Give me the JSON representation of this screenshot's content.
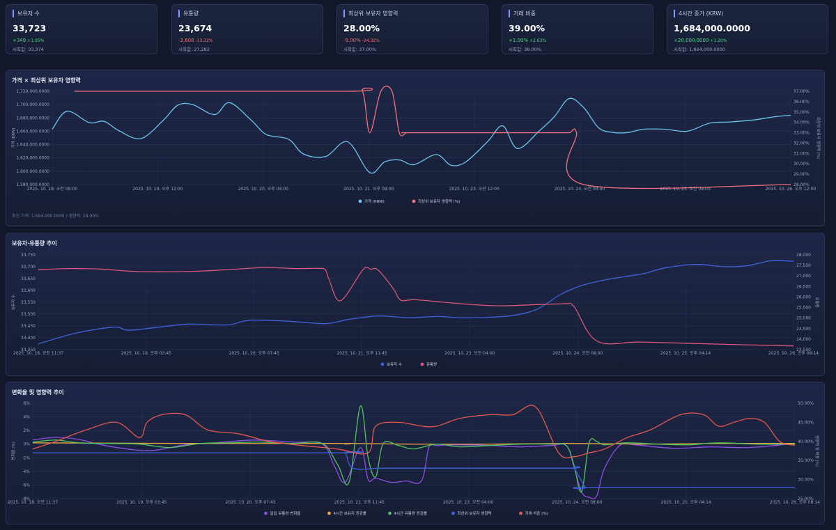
{
  "cards": [
    {
      "title": "보유자 수",
      "value": "33,723",
      "change": "+349",
      "pct": "+1.05%",
      "dir": "pos",
      "prev": "시작값: 33,374"
    },
    {
      "title": "유통량",
      "value": "23,674",
      "change": "-3,608",
      "pct": "-13.22%",
      "dir": "neg",
      "prev": "시작값: 27,282"
    },
    {
      "title": "최상위 보유자 영향력",
      "value": "28.00%",
      "change": "-9.00%",
      "pct": "-24.32%",
      "dir": "neg",
      "prev": "시작값: 37.00%"
    },
    {
      "title": "거래 비중",
      "value": "39.00%",
      "change": "+1.00%",
      "pct": "+2.63%",
      "dir": "pos",
      "prev": "시작값: 38.00%"
    },
    {
      "title": "4시간 종가 (KRW)",
      "value": "1,684,000.0000",
      "change": "+20,000.0000",
      "pct": "+1.20%",
      "dir": "pos",
      "prev": "시작값: 1,664,000.0000"
    }
  ],
  "panels": {
    "p1_title": "가격 × 최상위 보유자 영향력",
    "p1_note": "최신 가격: 1,684,000.0000 / 영향력: 28.00%",
    "p2_title": "보유자·유통량 추이",
    "p3_title": "변화율 및 영향력 추이"
  },
  "chart_data": [
    {
      "type": "line",
      "title": "가격 × 최상위 보유자 영향력",
      "xlabel": "",
      "ylabel": "가격 (KRW)",
      "y2label": "최상위 보유자 영향력 (%)",
      "ylim": [
        1580000,
        1720000
      ],
      "y2lim": [
        28,
        37
      ],
      "yticks": [
        "1,580,000.0000",
        "1,600,000.0000",
        "1,620,000.0000",
        "1,640,000.0000",
        "1,660,000.0000",
        "1,680,000.0000",
        "1,700,000.0000",
        "1,720,000.0000"
      ],
      "y2ticks": [
        "28.00%",
        "29.00%",
        "30.00%",
        "31.00%",
        "32.00%",
        "33.00%",
        "34.00%",
        "35.00%",
        "36.00%",
        "37.00%"
      ],
      "xticks": [
        "2025. 10. 18. 오전 08:00",
        "2025. 10. 19. 오후 12:00",
        "2025. 10. 20. 오후 04:00",
        "2025. 10. 21. 오후 08:00",
        "2025. 10. 23. 오전 12:00",
        "2025. 10. 24. 오전 04:00",
        "2025. 10. 25. 오전 08:00",
        "2025. 10. 26. 오후 12:00"
      ],
      "series": [
        {
          "name": "가격 (KRW)",
          "axis": "left",
          "color": "#6cc7ee",
          "x": [
            0,
            2,
            5,
            7,
            9,
            12,
            15,
            17,
            19,
            22,
            24,
            27,
            29,
            32,
            34,
            37,
            40,
            43,
            45,
            47,
            49,
            52,
            54,
            56,
            59,
            61,
            63,
            66,
            68,
            70,
            72,
            74,
            76,
            78,
            80,
            83,
            86,
            89,
            92,
            95,
            98,
            100
          ],
          "values": [
            1663000,
            1690000,
            1673000,
            1675000,
            1661000,
            1649000,
            1676000,
            1699000,
            1700000,
            1685000,
            1703000,
            1676000,
            1655000,
            1648000,
            1626000,
            1622000,
            1644000,
            1598000,
            1614000,
            1617000,
            1610000,
            1625000,
            1609000,
            1614000,
            1645000,
            1668000,
            1634000,
            1661000,
            1682000,
            1709000,
            1695000,
            1665000,
            1658000,
            1658000,
            1663000,
            1663000,
            1660000,
            1672000,
            1674000,
            1677000,
            1682000,
            1684000
          ]
        },
        {
          "name": "최상위 보유자 영향력 (%)",
          "axis": "right",
          "color": "#f0737d",
          "x": [
            3,
            40,
            42,
            43,
            44.5,
            46,
            47,
            48,
            49,
            68,
            70,
            71,
            72,
            100
          ],
          "values": [
            37,
            37,
            37,
            33,
            37,
            37,
            33,
            33,
            33,
            33,
            33,
            33,
            28,
            28
          ]
        }
      ],
      "legend": [
        "가격 (KRW)",
        "최상위 보유자 영향력 (%)"
      ]
    },
    {
      "type": "line",
      "title": "보유자·유통량 추이",
      "ylabel": "보유자 수",
      "y2label": "유통량",
      "ylim": [
        33350,
        33750
      ],
      "y2lim": [
        23500,
        28000
      ],
      "yticks": [
        "33,350",
        "33,400",
        "33,450",
        "33,500",
        "33,550",
        "33,600",
        "33,650",
        "33,700",
        "33,750"
      ],
      "y2ticks": [
        "23,500",
        "24,000",
        "24,500",
        "25,000",
        "25,500",
        "26,000",
        "26,500",
        "27,000",
        "27,500",
        "28,000"
      ],
      "xticks": [
        "2025. 10. 18. 오전 11:37",
        "2025. 10. 19. 오후 03:45",
        "2025. 10. 20. 오후 07:45",
        "2025. 10. 21. 오후 11:45",
        "2025. 10. 23. 오전 04:00",
        "2025. 10. 24. 오전 08:00",
        "2025. 10. 25. 오후 04:14",
        "2025. 10. 26. 오후 08:14"
      ],
      "series": [
        {
          "name": "보유자 수",
          "axis": "left",
          "color": "#3f63dd",
          "x": [
            0,
            5,
            10,
            12,
            16,
            20,
            25,
            28,
            33,
            38,
            41,
            45,
            49,
            53,
            56,
            60,
            63,
            66,
            69,
            71,
            73,
            76,
            80,
            83,
            87,
            91,
            94,
            97,
            100
          ],
          "values": [
            33374,
            33420,
            33445,
            33432,
            33445,
            33458,
            33454,
            33474,
            33470,
            33460,
            33477,
            33492,
            33485,
            33490,
            33484,
            33487,
            33495,
            33520,
            33580,
            33610,
            33630,
            33650,
            33670,
            33695,
            33710,
            33700,
            33705,
            33725,
            33723
          ]
        },
        {
          "name": "유통량",
          "axis": "right",
          "color": "#d9577a",
          "x": [
            0,
            4,
            8,
            13,
            18,
            22,
            26,
            30,
            34,
            37,
            38,
            38.5,
            40,
            43,
            44,
            45,
            47,
            48,
            50,
            56,
            61,
            66,
            69,
            70,
            71,
            74,
            80,
            90,
            100
          ],
          "values": [
            27300,
            27350,
            27330,
            27210,
            27200,
            27240,
            27320,
            27400,
            27350,
            27360,
            27300,
            26840,
            25820,
            27300,
            27320,
            27280,
            26400,
            25850,
            25870,
            25680,
            25580,
            25640,
            25670,
            25680,
            25520,
            23900,
            23860,
            23760,
            23674
          ]
        }
      ],
      "legend": [
        "보유자 수",
        "유통량"
      ]
    },
    {
      "type": "line",
      "title": "변화율 및 영향력 추이",
      "ylabel": "변화율 (%)",
      "y2label": "영향력 및 비중 (%)",
      "ylim": [
        -8,
        6
      ],
      "y2lim": [
        25,
        50
      ],
      "yticks": [
        "-8%",
        "-6%",
        "-4%",
        "-2%",
        "0%",
        "2%",
        "4%",
        "6%"
      ],
      "y2ticks": [
        "25.00%",
        "30.00%",
        "35.00%",
        "40.00%",
        "45.00%",
        "50.00%"
      ],
      "xticks": [
        "2025. 10. 18. 오전 11:37",
        "2025. 10. 19. 오후 03:45",
        "2025. 10. 20. 오후 07:45",
        "2025. 10. 21. 오후 11:45",
        "2025. 10. 23. 오전 04:00",
        "2025. 10. 24. 오전 08:00",
        "2025. 10. 25. 오후 04:14",
        "2025. 10. 26. 오후 08:14"
      ],
      "series": [
        {
          "name": "일일 유통량 변화율",
          "axis": "left",
          "color": "#8b4fe6",
          "x": [
            0,
            3,
            6,
            9,
            13,
            16,
            20,
            24,
            29,
            34,
            38,
            39.5,
            41,
            43,
            44,
            45,
            47,
            49,
            51,
            52,
            53,
            56,
            60,
            64,
            68,
            70,
            71,
            72,
            73,
            74,
            75,
            77,
            79,
            84,
            89,
            94,
            100
          ],
          "values": [
            0.6,
            1,
            0.7,
            -0.1,
            -0.8,
            -0.9,
            -0.1,
            0.2,
            0.6,
            0.3,
            0,
            -3,
            -5.6,
            -0.5,
            -5.2,
            -5,
            -5.6,
            -5.4,
            -5.4,
            -0.4,
            -0.2,
            -0.1,
            -0.2,
            -0.4,
            -0.2,
            -0.2,
            -3.2,
            -7,
            -7.8,
            -7.6,
            -3.6,
            -0.2,
            -0.1,
            -0.6,
            -0.4,
            -0.5,
            0.1
          ]
        },
        {
          "name": "4시간 보유자 증감률",
          "axis": "left",
          "color": "#e8a640",
          "x": [
            0,
            20,
            40,
            41,
            42,
            50,
            60,
            70,
            80,
            90,
            100
          ],
          "values": [
            0.2,
            0.1,
            0.1,
            0,
            0.1,
            0,
            0,
            0.1,
            0,
            0.1,
            0.1
          ]
        },
        {
          "name": "4시간 유통량 증감률",
          "axis": "left",
          "color": "#53c35e",
          "x": [
            0,
            3,
            6,
            10,
            14,
            18,
            22,
            26,
            30,
            34,
            38,
            40,
            41.5,
            43,
            44,
            45,
            46,
            48,
            50,
            53,
            56,
            60,
            64,
            68,
            70,
            71,
            72,
            73,
            74,
            75,
            78,
            82,
            86,
            90,
            95,
            100
          ],
          "values": [
            0.3,
            0.6,
            0.2,
            0.1,
            0,
            -0.5,
            0.1,
            0.2,
            0.3,
            0.1,
            0.1,
            -3,
            -5.6,
            5.6,
            -2,
            -4.8,
            0.1,
            -0.2,
            -0.7,
            0,
            -0.4,
            -0.2,
            0,
            0,
            -0.2,
            -3,
            -7,
            0.2,
            0.4,
            -0.1,
            0.2,
            0,
            -0.1,
            0.2,
            0,
            0
          ]
        },
        {
          "name": "최상위 보유자 영향력",
          "axis": "right",
          "color": "#3f63dd",
          "x": [
            0,
            40,
            41,
            42,
            45.5,
            47,
            49,
            70,
            71,
            72.5,
            73,
            100
          ],
          "values": [
            37,
            37,
            37,
            33,
            33,
            33,
            33,
            33,
            33,
            28,
            28,
            28
          ]
        },
        {
          "name": "거래 비중 (%)",
          "axis": "right",
          "color": "#e4584e",
          "x": [
            0,
            3,
            7,
            11,
            14,
            15,
            17,
            20,
            23,
            27,
            31,
            35,
            40,
            44,
            45,
            48,
            51,
            53,
            56,
            60,
            63,
            66,
            69,
            71,
            73,
            75,
            78,
            81,
            85,
            88,
            90,
            92,
            94,
            96,
            98,
            100
          ],
          "values": [
            38,
            40,
            43,
            45,
            41,
            45,
            47,
            47,
            43,
            42,
            40,
            39,
            38,
            37,
            44,
            45,
            44,
            44,
            46,
            47,
            47,
            49,
            37,
            36,
            37,
            38,
            41,
            43,
            47,
            47,
            44,
            45,
            46,
            45,
            40,
            39
          ]
        }
      ],
      "legend": [
        "일일 유통량 변화율",
        "4시간 보유자 증감률",
        "4시간 유통량 증감률",
        "최상위 보유자 영향력",
        "거래 비중 (%)"
      ]
    }
  ]
}
